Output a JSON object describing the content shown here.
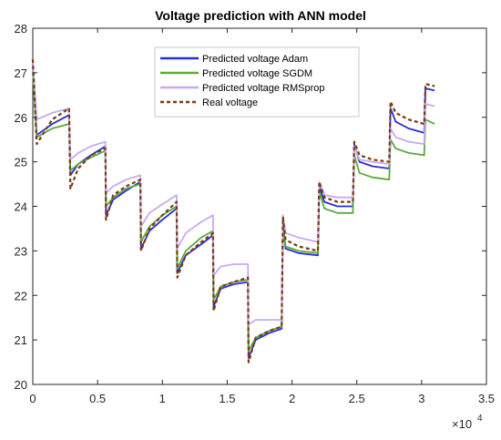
{
  "chart_data": {
    "type": "line",
    "title": "Voltage prediction with  ANN model",
    "xlabel": "",
    "ylabel": "",
    "x_exponent_label": "×10",
    "x_exponent_power": "4",
    "xlim": [
      0,
      3.5
    ],
    "ylim": [
      20,
      28
    ],
    "x_ticks": [
      0,
      0.5,
      1,
      1.5,
      2,
      2.5,
      3,
      3.5
    ],
    "x_tick_labels": [
      "0",
      "0.5",
      "1",
      "1.5",
      "2",
      "2.5",
      "3",
      "3.5"
    ],
    "y_ticks": [
      20,
      21,
      22,
      23,
      24,
      25,
      26,
      27,
      28
    ],
    "y_tick_labels": [
      "20",
      "21",
      "22",
      "23",
      "24",
      "25",
      "26",
      "27",
      "28"
    ],
    "grid": false,
    "legend_position": "top-center",
    "series": [
      {
        "name": "Predicted voltage Adam",
        "color": "#2b2bd9",
        "style": "solid",
        "points": [
          [
            0.0,
            27.2
          ],
          [
            0.03,
            25.6
          ],
          [
            0.15,
            25.85
          ],
          [
            0.28,
            26.05
          ],
          [
            0.29,
            24.7
          ],
          [
            0.35,
            24.95
          ],
          [
            0.45,
            25.15
          ],
          [
            0.56,
            25.35
          ],
          [
            0.565,
            23.8
          ],
          [
            0.62,
            24.15
          ],
          [
            0.72,
            24.35
          ],
          [
            0.83,
            24.55
          ],
          [
            0.835,
            23.05
          ],
          [
            0.9,
            23.45
          ],
          [
            1.0,
            23.7
          ],
          [
            1.11,
            23.95
          ],
          [
            1.115,
            22.5
          ],
          [
            1.18,
            22.9
          ],
          [
            1.3,
            23.15
          ],
          [
            1.39,
            23.35
          ],
          [
            1.395,
            21.75
          ],
          [
            1.45,
            22.15
          ],
          [
            1.55,
            22.25
          ],
          [
            1.66,
            22.3
          ],
          [
            1.665,
            20.6
          ],
          [
            1.72,
            21.0
          ],
          [
            1.82,
            21.15
          ],
          [
            1.92,
            21.25
          ],
          [
            1.93,
            23.65
          ],
          [
            1.95,
            23.05
          ],
          [
            2.05,
            22.95
          ],
          [
            2.2,
            22.9
          ],
          [
            2.21,
            24.45
          ],
          [
            2.25,
            24.1
          ],
          [
            2.35,
            24.0
          ],
          [
            2.47,
            24.0
          ],
          [
            2.48,
            25.4
          ],
          [
            2.52,
            25.0
          ],
          [
            2.62,
            24.9
          ],
          [
            2.75,
            24.85
          ],
          [
            2.76,
            26.2
          ],
          [
            2.8,
            25.9
          ],
          [
            2.9,
            25.75
          ],
          [
            3.02,
            25.65
          ],
          [
            3.03,
            26.65
          ],
          [
            3.1,
            26.6
          ]
        ]
      },
      {
        "name": "Predicted voltage  SGDM",
        "color": "#5aaa3c",
        "style": "solid",
        "points": [
          [
            0.0,
            27.0
          ],
          [
            0.03,
            25.55
          ],
          [
            0.15,
            25.75
          ],
          [
            0.28,
            25.85
          ],
          [
            0.29,
            24.8
          ],
          [
            0.35,
            24.95
          ],
          [
            0.45,
            25.1
          ],
          [
            0.56,
            25.25
          ],
          [
            0.565,
            24.0
          ],
          [
            0.62,
            24.2
          ],
          [
            0.72,
            24.4
          ],
          [
            0.83,
            24.5
          ],
          [
            0.835,
            23.2
          ],
          [
            0.9,
            23.55
          ],
          [
            1.0,
            23.8
          ],
          [
            1.11,
            24.0
          ],
          [
            1.115,
            22.6
          ],
          [
            1.18,
            23.0
          ],
          [
            1.3,
            23.3
          ],
          [
            1.39,
            23.45
          ],
          [
            1.395,
            21.9
          ],
          [
            1.45,
            22.2
          ],
          [
            1.55,
            22.3
          ],
          [
            1.66,
            22.35
          ],
          [
            1.665,
            20.75
          ],
          [
            1.72,
            21.05
          ],
          [
            1.82,
            21.2
          ],
          [
            1.92,
            21.3
          ],
          [
            1.93,
            23.55
          ],
          [
            1.95,
            23.1
          ],
          [
            2.05,
            23.0
          ],
          [
            2.2,
            22.95
          ],
          [
            2.21,
            24.35
          ],
          [
            2.25,
            23.95
          ],
          [
            2.35,
            23.85
          ],
          [
            2.47,
            23.85
          ],
          [
            2.48,
            25.15
          ],
          [
            2.52,
            24.75
          ],
          [
            2.62,
            24.65
          ],
          [
            2.75,
            24.6
          ],
          [
            2.76,
            25.5
          ],
          [
            2.8,
            25.3
          ],
          [
            2.9,
            25.2
          ],
          [
            3.02,
            25.15
          ],
          [
            3.03,
            25.95
          ],
          [
            3.1,
            25.85
          ]
        ]
      },
      {
        "name": "Predicted voltage RMSprop",
        "color": "#c9a9f0",
        "style": "solid",
        "points": [
          [
            0.0,
            27.3
          ],
          [
            0.03,
            25.95
          ],
          [
            0.15,
            26.1
          ],
          [
            0.28,
            26.2
          ],
          [
            0.29,
            25.05
          ],
          [
            0.35,
            25.2
          ],
          [
            0.45,
            25.35
          ],
          [
            0.56,
            25.45
          ],
          [
            0.565,
            24.3
          ],
          [
            0.62,
            24.45
          ],
          [
            0.72,
            24.6
          ],
          [
            0.83,
            24.7
          ],
          [
            0.835,
            23.55
          ],
          [
            0.9,
            23.85
          ],
          [
            1.0,
            24.05
          ],
          [
            1.11,
            24.25
          ],
          [
            1.115,
            23.05
          ],
          [
            1.18,
            23.4
          ],
          [
            1.3,
            23.65
          ],
          [
            1.39,
            23.8
          ],
          [
            1.395,
            22.45
          ],
          [
            1.45,
            22.65
          ],
          [
            1.55,
            22.7
          ],
          [
            1.66,
            22.7
          ],
          [
            1.665,
            21.35
          ],
          [
            1.72,
            21.45
          ],
          [
            1.82,
            21.45
          ],
          [
            1.92,
            21.45
          ],
          [
            1.93,
            23.8
          ],
          [
            1.95,
            23.4
          ],
          [
            2.05,
            23.3
          ],
          [
            2.2,
            23.2
          ],
          [
            2.21,
            24.55
          ],
          [
            2.25,
            24.25
          ],
          [
            2.35,
            24.2
          ],
          [
            2.47,
            24.2
          ],
          [
            2.48,
            25.35
          ],
          [
            2.52,
            25.05
          ],
          [
            2.62,
            25.0
          ],
          [
            2.75,
            24.95
          ],
          [
            2.76,
            25.75
          ],
          [
            2.8,
            25.55
          ],
          [
            2.9,
            25.45
          ],
          [
            3.02,
            25.4
          ],
          [
            3.03,
            26.3
          ],
          [
            3.1,
            26.25
          ]
        ]
      },
      {
        "name": "Real voltage",
        "color": "#7a3b10",
        "style": "dashed",
        "points": [
          [
            0.0,
            27.3
          ],
          [
            0.03,
            25.4
          ],
          [
            0.15,
            25.95
          ],
          [
            0.28,
            26.2
          ],
          [
            0.29,
            24.4
          ],
          [
            0.35,
            24.85
          ],
          [
            0.45,
            25.15
          ],
          [
            0.56,
            25.3
          ],
          [
            0.565,
            23.7
          ],
          [
            0.62,
            24.25
          ],
          [
            0.72,
            24.45
          ],
          [
            0.83,
            24.6
          ],
          [
            0.835,
            23.0
          ],
          [
            0.9,
            23.5
          ],
          [
            1.0,
            23.8
          ],
          [
            1.11,
            24.1
          ],
          [
            1.115,
            22.4
          ],
          [
            1.18,
            22.9
          ],
          [
            1.3,
            23.2
          ],
          [
            1.39,
            23.4
          ],
          [
            1.395,
            21.65
          ],
          [
            1.45,
            22.2
          ],
          [
            1.55,
            22.3
          ],
          [
            1.66,
            22.4
          ],
          [
            1.665,
            20.5
          ],
          [
            1.72,
            21.05
          ],
          [
            1.82,
            21.2
          ],
          [
            1.92,
            21.3
          ],
          [
            1.93,
            23.75
          ],
          [
            1.95,
            23.25
          ],
          [
            2.05,
            23.1
          ],
          [
            2.2,
            23.0
          ],
          [
            2.21,
            24.55
          ],
          [
            2.25,
            24.2
          ],
          [
            2.35,
            24.1
          ],
          [
            2.47,
            24.1
          ],
          [
            2.48,
            25.45
          ],
          [
            2.52,
            25.15
          ],
          [
            2.62,
            25.05
          ],
          [
            2.75,
            25.0
          ],
          [
            2.76,
            26.35
          ],
          [
            2.8,
            26.1
          ],
          [
            2.9,
            25.95
          ],
          [
            3.02,
            25.85
          ],
          [
            3.03,
            26.75
          ],
          [
            3.1,
            26.7
          ]
        ]
      }
    ]
  }
}
